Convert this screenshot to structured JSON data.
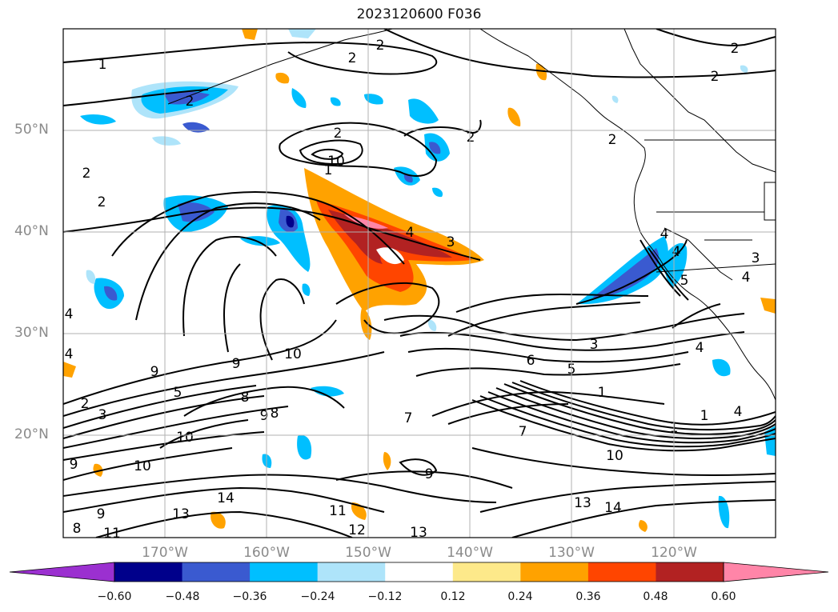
{
  "title": "2023120600 F036",
  "latitude_labels": [
    "50°N",
    "40°N",
    "30°N",
    "20°N"
  ],
  "longitude_labels": [
    "170°W",
    "160°W",
    "150°W",
    "140°W",
    "130°W",
    "120°W"
  ],
  "colorbar": {
    "tick_labels": [
      "−0.60",
      "−0.48",
      "−0.36",
      "−0.24",
      "−0.12",
      "0.12",
      "0.24",
      "0.36",
      "0.48",
      "0.60"
    ],
    "colors": [
      "#9b30d0",
      "#00008b",
      "#3a5ad0",
      "#00bfff",
      "#aee4fa",
      "#ffffff",
      "#fde98a",
      "#ffa200",
      "#ff4500",
      "#b22222",
      "#ff85a8"
    ],
    "extend": "both"
  },
  "contour_labels": [
    "1",
    "2",
    "2",
    "2",
    "2",
    "1",
    "2",
    "2",
    "2",
    "2",
    "2",
    "2",
    "10",
    "4",
    "3",
    "3",
    "4",
    "4",
    "5",
    "4",
    "4",
    "4",
    "9",
    "5",
    "3",
    "2",
    "9",
    "10",
    "9",
    "8",
    "8",
    "6",
    "3",
    "5",
    "7",
    "1",
    "1",
    "4",
    "4",
    "7",
    "1",
    "10",
    "10",
    "10",
    "9",
    "9",
    "14",
    "11",
    "12",
    "13",
    "13",
    "14",
    "8",
    "11",
    "13",
    "9"
  ],
  "colors": {
    "land_line": "#000000",
    "contour": "#000000",
    "grid": "#b0b0b0",
    "axis_label": "#8a8a8a"
  }
}
